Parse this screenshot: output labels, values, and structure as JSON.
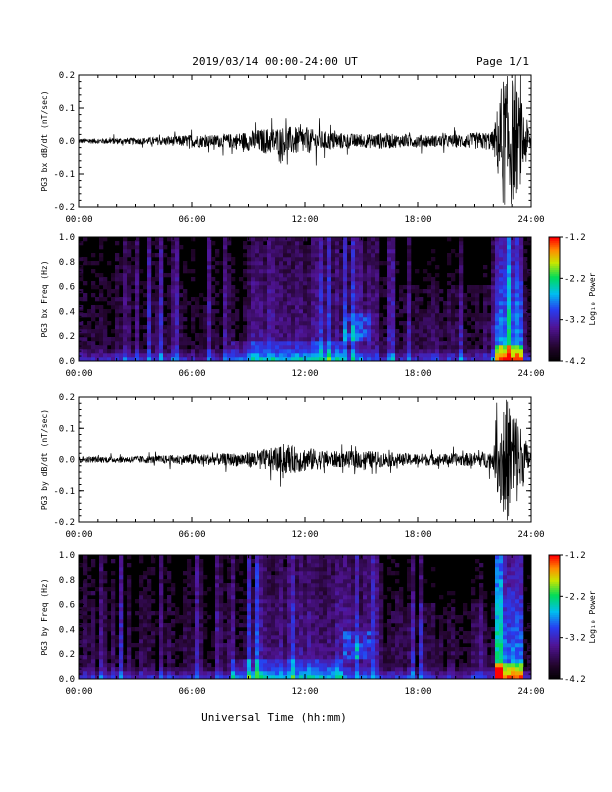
{
  "header": {
    "title": "2019/03/14  00:00-24:00 UT",
    "page": "Page 1/1"
  },
  "footer": {
    "xlabel": "Universal Time (hh:mm)"
  },
  "colorbar": {
    "label": "Log₁₀ Power",
    "ticks": [
      "-1.2",
      "-2.2",
      "-3.2",
      "-4.2"
    ],
    "range": [
      -4.2,
      -1.2
    ]
  },
  "chart_data": [
    {
      "type": "line",
      "ylabel": "PG3 bx dB/dt (nT/sec)",
      "x_ticks": [
        "00:00",
        "06:00",
        "12:00",
        "18:00",
        "24:00"
      ],
      "y_ticks": [
        "0.2",
        "0.1",
        "0.0",
        "-0.1",
        "-0.2"
      ],
      "xlim": [
        0,
        24
      ],
      "ylim": [
        -0.2,
        0.2
      ],
      "color": "#000000",
      "series": [
        {
          "envelope_hours": [
            0,
            1,
            2,
            3,
            4,
            5,
            6,
            7,
            8,
            9,
            10,
            11,
            12,
            13,
            14,
            15,
            16,
            17,
            18,
            19,
            20,
            21,
            22,
            22.5,
            23,
            23.5,
            24
          ],
          "amplitude": [
            0.008,
            0.008,
            0.01,
            0.01,
            0.012,
            0.015,
            0.02,
            0.018,
            0.022,
            0.03,
            0.04,
            0.045,
            0.04,
            0.03,
            0.025,
            0.02,
            0.025,
            0.02,
            0.02,
            0.018,
            0.02,
            0.025,
            0.03,
            0.2,
            0.2,
            0.12,
            0.02
          ]
        }
      ]
    },
    {
      "type": "heatmap",
      "ylabel": "PG3 bx Freq (Hz)",
      "x_ticks": [
        "00:00",
        "06:00",
        "12:00",
        "18:00",
        "24:00"
      ],
      "y_ticks": [
        "1.0",
        "0.8",
        "0.6",
        "0.4",
        "0.2",
        "0.0"
      ],
      "xlim": [
        0,
        24
      ],
      "ylim": [
        0,
        1.0
      ]
    },
    {
      "type": "line",
      "ylabel": "PG3 by dB/dt (nT/sec)",
      "x_ticks": [
        "00:00",
        "06:00",
        "12:00",
        "18:00",
        "24:00"
      ],
      "y_ticks": [
        "0.2",
        "0.1",
        "0.0",
        "-0.1",
        "-0.2"
      ],
      "xlim": [
        0,
        24
      ],
      "ylim": [
        -0.2,
        0.2
      ],
      "color": "#000000",
      "series": [
        {
          "envelope_hours": [
            0,
            1,
            2,
            3,
            4,
            5,
            6,
            7,
            8,
            9,
            10,
            11,
            12,
            13,
            14,
            15,
            16,
            17,
            18,
            19,
            20,
            21,
            22,
            22.5,
            23,
            23.5,
            24
          ],
          "amplitude": [
            0.01,
            0.01,
            0.01,
            0.012,
            0.012,
            0.015,
            0.018,
            0.018,
            0.02,
            0.025,
            0.035,
            0.045,
            0.04,
            0.03,
            0.025,
            0.03,
            0.025,
            0.02,
            0.02,
            0.018,
            0.02,
            0.022,
            0.03,
            0.2,
            0.2,
            0.1,
            0.02
          ]
        }
      ]
    },
    {
      "type": "heatmap",
      "ylabel": "PG3 by Freq (Hz)",
      "x_ticks": [
        "00:00",
        "06:00",
        "12:00",
        "18:00",
        "24:00"
      ],
      "y_ticks": [
        "1.0",
        "0.8",
        "0.6",
        "0.4",
        "0.2",
        "0.0"
      ],
      "xlim": [
        0,
        24
      ],
      "ylim": [
        0,
        1.0
      ]
    }
  ]
}
